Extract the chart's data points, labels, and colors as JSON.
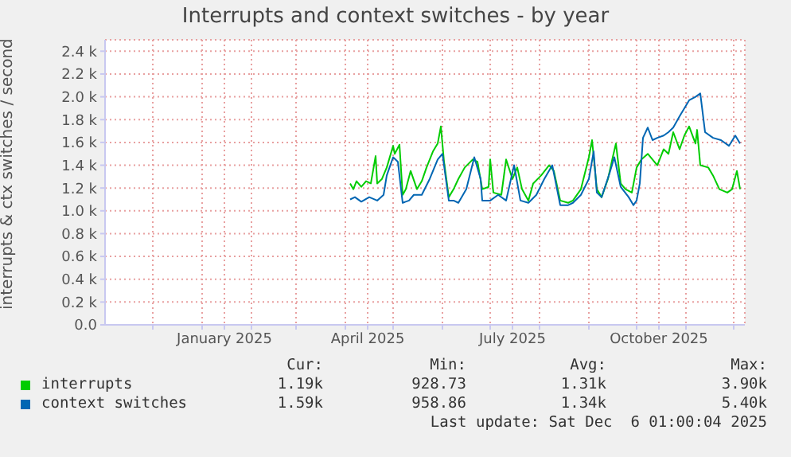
{
  "chart_data": {
    "type": "line",
    "title": "Interrupts and context switches - by year",
    "ylabel": "interrupts & ctx switches / second",
    "xlim": [
      "2024-11-01",
      "2025-12-08"
    ],
    "xticks": [
      {
        "value": "2024-12-01",
        "label": null
      },
      {
        "value": "2025-01-01",
        "label": null
      },
      {
        "value": "2025-01-15",
        "label": "January 2025"
      },
      {
        "value": "2025-02-01",
        "label": null
      },
      {
        "value": "2025-03-01",
        "label": null
      },
      {
        "value": "2025-04-01",
        "label": null
      },
      {
        "value": "2025-04-15",
        "label": "April 2025"
      },
      {
        "value": "2025-05-01",
        "label": null
      },
      {
        "value": "2025-06-01",
        "label": null
      },
      {
        "value": "2025-07-01",
        "label": null
      },
      {
        "value": "2025-07-15",
        "label": "July 2025"
      },
      {
        "value": "2025-08-01",
        "label": null
      },
      {
        "value": "2025-09-01",
        "label": null
      },
      {
        "value": "2025-10-01",
        "label": null
      },
      {
        "value": "2025-10-15",
        "label": "October 2025"
      },
      {
        "value": "2025-11-01",
        "label": null
      },
      {
        "value": "2025-12-01",
        "label": null
      }
    ],
    "ylim": [
      0,
      2500
    ],
    "yticks": [
      {
        "value": 0,
        "label": "0.0"
      },
      {
        "value": 200,
        "label": "0.2 k"
      },
      {
        "value": 400,
        "label": "0.4 k"
      },
      {
        "value": 600,
        "label": "0.6 k"
      },
      {
        "value": 800,
        "label": "0.8 k"
      },
      {
        "value": 1000,
        "label": "1.0 k"
      },
      {
        "value": 1200,
        "label": "1.2 k"
      },
      {
        "value": 1400,
        "label": "1.4 k"
      },
      {
        "value": 1600,
        "label": "1.6 k"
      },
      {
        "value": 1800,
        "label": "1.8 k"
      },
      {
        "value": 2000,
        "label": "2.0 k"
      },
      {
        "value": 2200,
        "label": "2.2 k"
      },
      {
        "value": 2400,
        "label": "2.4 k"
      }
    ],
    "grid": true,
    "legend": "bottom",
    "series": [
      {
        "name": "interrupts",
        "color": "#00cc00",
        "x": [
          "2025-04-04",
          "2025-04-06",
          "2025-04-08",
          "2025-04-11",
          "2025-04-14",
          "2025-04-17",
          "2025-04-20",
          "2025-04-21",
          "2025-04-24",
          "2025-04-27",
          "2025-05-01",
          "2025-05-02",
          "2025-05-05",
          "2025-05-07",
          "2025-05-09",
          "2025-05-12",
          "2025-05-16",
          "2025-05-19",
          "2025-05-22",
          "2025-05-26",
          "2025-05-29",
          "2025-05-31",
          "2025-06-02",
          "2025-06-05",
          "2025-06-08",
          "2025-06-11",
          "2025-06-15",
          "2025-06-20",
          "2025-06-23",
          "2025-06-26",
          "2025-06-30",
          "2025-07-01",
          "2025-07-03",
          "2025-07-08",
          "2025-07-11",
          "2025-07-15",
          "2025-07-18",
          "2025-07-21",
          "2025-07-25",
          "2025-07-28",
          "2025-08-02",
          "2025-08-07",
          "2025-08-10",
          "2025-08-14",
          "2025-08-19",
          "2025-08-22",
          "2025-08-27",
          "2025-09-01",
          "2025-09-03",
          "2025-09-06",
          "2025-09-09",
          "2025-09-13",
          "2025-09-16",
          "2025-09-18",
          "2025-09-21",
          "2025-09-24",
          "2025-09-28",
          "2025-10-01",
          "2025-10-04",
          "2025-10-08",
          "2025-10-11",
          "2025-10-14",
          "2025-10-18",
          "2025-10-21",
          "2025-10-24",
          "2025-10-28",
          "2025-10-31",
          "2025-11-03",
          "2025-11-07",
          "2025-11-08",
          "2025-11-10",
          "2025-11-15",
          "2025-11-18",
          "2025-11-22",
          "2025-11-27",
          "2025-11-30",
          "2025-12-03",
          "2025-12-05"
        ],
        "values": [
          1240,
          1190,
          1260,
          1210,
          1260,
          1240,
          1480,
          1240,
          1280,
          1380,
          1570,
          1500,
          1580,
          1140,
          1190,
          1350,
          1190,
          1260,
          1380,
          1520,
          1590,
          1740,
          1430,
          1120,
          1190,
          1280,
          1380,
          1450,
          1430,
          1190,
          1210,
          1450,
          1160,
          1140,
          1450,
          1280,
          1380,
          1190,
          1090,
          1240,
          1310,
          1400,
          1350,
          1090,
          1070,
          1090,
          1190,
          1470,
          1620,
          1190,
          1120,
          1280,
          1470,
          1590,
          1240,
          1190,
          1160,
          1380,
          1450,
          1500,
          1450,
          1400,
          1540,
          1500,
          1690,
          1540,
          1660,
          1740,
          1590,
          1710,
          1400,
          1380,
          1310,
          1190,
          1160,
          1190,
          1350,
          1190
        ]
      },
      {
        "name": "context switches",
        "color": "#0066b3",
        "x": [
          "2025-04-04",
          "2025-04-07",
          "2025-04-11",
          "2025-04-16",
          "2025-04-21",
          "2025-04-25",
          "2025-04-27",
          "2025-05-01",
          "2025-05-04",
          "2025-05-07",
          "2025-05-11",
          "2025-05-14",
          "2025-05-19",
          "2025-05-24",
          "2025-05-29",
          "2025-06-01",
          "2025-06-05",
          "2025-06-08",
          "2025-06-11",
          "2025-06-16",
          "2025-06-21",
          "2025-06-25",
          "2025-06-26",
          "2025-07-01",
          "2025-07-06",
          "2025-07-11",
          "2025-07-16",
          "2025-07-20",
          "2025-07-25",
          "2025-07-30",
          "2025-08-04",
          "2025-08-09",
          "2025-08-14",
          "2025-08-19",
          "2025-08-22",
          "2025-08-27",
          "2025-09-01",
          "2025-09-04",
          "2025-09-06",
          "2025-09-09",
          "2025-09-14",
          "2025-09-17",
          "2025-09-21",
          "2025-09-26",
          "2025-09-29",
          "2025-10-01",
          "2025-10-03",
          "2025-10-05",
          "2025-10-08",
          "2025-10-11",
          "2025-10-14",
          "2025-10-18",
          "2025-10-21",
          "2025-10-24",
          "2025-10-28",
          "2025-10-31",
          "2025-11-03",
          "2025-11-07",
          "2025-11-10",
          "2025-11-13",
          "2025-11-18",
          "2025-11-23",
          "2025-11-28",
          "2025-12-02",
          "2025-12-05"
        ],
        "values": [
          1100,
          1120,
          1080,
          1120,
          1090,
          1140,
          1310,
          1470,
          1430,
          1070,
          1090,
          1140,
          1140,
          1280,
          1450,
          1500,
          1090,
          1090,
          1070,
          1190,
          1470,
          1280,
          1090,
          1090,
          1140,
          1090,
          1400,
          1090,
          1070,
          1140,
          1280,
          1400,
          1050,
          1050,
          1070,
          1140,
          1280,
          1520,
          1160,
          1120,
          1330,
          1470,
          1210,
          1120,
          1050,
          1090,
          1240,
          1640,
          1730,
          1620,
          1640,
          1660,
          1690,
          1730,
          1830,
          1900,
          1970,
          2000,
          2030,
          1690,
          1640,
          1620,
          1570,
          1660,
          1590
        ]
      }
    ],
    "annotations": [
      "Cur:",
      "Min:",
      "Avg:",
      "Max:",
      "1.19k",
      "928.73",
      "1.31k",
      "3.90k",
      "1.59k",
      "958.86",
      "1.34k",
      "5.40k",
      "Last update: Sat Dec  6 01:00:04 2025"
    ]
  }
}
